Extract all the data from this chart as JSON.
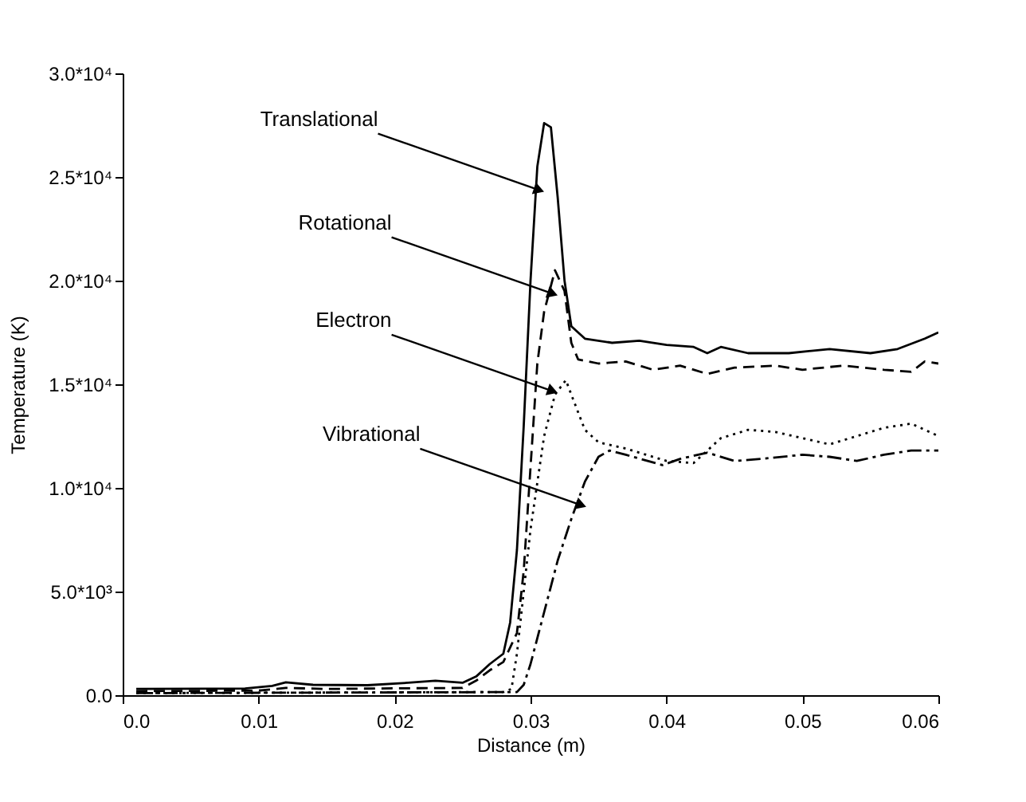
{
  "chart_data": {
    "type": "line",
    "xlabel": "Distance (m)",
    "ylabel": "Temperature (K)",
    "xlim": [
      0,
      0.06
    ],
    "xticks": [
      {
        "value": 0,
        "label": "0.0"
      },
      0.01,
      0.02,
      0.03,
      0.04,
      0.05,
      0.06
    ],
    "ylim": [
      0,
      30000
    ],
    "yticks": [
      {
        "value": 0,
        "label": "0.0"
      },
      {
        "value": 5000,
        "label": "5.0*10³"
      },
      {
        "value": 10000,
        "label": "1.0*10⁴"
      },
      {
        "value": 15000,
        "label": "1.5*10⁴"
      },
      {
        "value": 20000,
        "label": "2.0*10⁴"
      },
      {
        "value": 25000,
        "label": "2.5*10⁴"
      },
      {
        "value": 30000,
        "label": "3.0*10⁴"
      }
    ],
    "grid": false,
    "series": [
      {
        "color": "#000000",
        "line_style": "solid",
        "x": [
          0.001,
          0.009,
          0.011,
          0.012,
          0.014,
          0.018,
          0.021,
          0.023,
          0.025,
          0.026,
          0.027,
          0.028,
          0.0285,
          0.029,
          0.0295,
          0.03,
          0.0305,
          0.031,
          0.0315,
          0.032,
          0.0325,
          0.033,
          0.034,
          0.036,
          0.038,
          0.04,
          0.042,
          0.043,
          0.044,
          0.046,
          0.049,
          0.052,
          0.055,
          0.057,
          0.059,
          0.06
        ],
        "values": [
          300,
          320,
          450,
          620,
          500,
          480,
          600,
          700,
          600,
          900,
          1500,
          2000,
          3500,
          7000,
          13000,
          20000,
          25500,
          27600,
          27400,
          24000,
          20000,
          17800,
          17200,
          17000,
          17100,
          16900,
          16800,
          16500,
          16800,
          16500,
          16500,
          16700,
          16500,
          16700,
          17200,
          17500
        ]
      },
      {
        "color": "#000000",
        "line_style": "dashed",
        "x": [
          0.001,
          0.01,
          0.012,
          0.015,
          0.02,
          0.025,
          0.026,
          0.027,
          0.028,
          0.029,
          0.0295,
          0.03,
          0.0305,
          0.031,
          0.0318,
          0.0325,
          0.033,
          0.0335,
          0.035,
          0.037,
          0.039,
          0.041,
          0.043,
          0.045,
          0.048,
          0.05,
          0.053,
          0.056,
          0.058,
          0.059,
          0.06
        ],
        "values": [
          200,
          220,
          350,
          300,
          330,
          350,
          700,
          1200,
          1600,
          3000,
          6000,
          11000,
          16000,
          18500,
          20500,
          19500,
          17000,
          16200,
          16000,
          16100,
          15700,
          15900,
          15500,
          15800,
          15900,
          15700,
          15900,
          15700,
          15600,
          16100,
          16000
        ]
      },
      {
        "color": "#000000",
        "line_style": "dotted",
        "x": [
          0.001,
          0.028,
          0.0286,
          0.029,
          0.0295,
          0.03,
          0.031,
          0.0318,
          0.0326,
          0.033,
          0.034,
          0.035,
          0.037,
          0.04,
          0.042,
          0.044,
          0.046,
          0.048,
          0.05,
          0.052,
          0.054,
          0.056,
          0.058,
          0.06
        ],
        "values": [
          100,
          150,
          300,
          2000,
          5000,
          8000,
          12500,
          14500,
          15200,
          14500,
          12800,
          12200,
          11900,
          11300,
          11200,
          12400,
          12800,
          12700,
          12400,
          12100,
          12500,
          12900,
          13100,
          12500
        ]
      },
      {
        "color": "#000000",
        "line_style": "dashdot",
        "x": [
          0.001,
          0.029,
          0.0295,
          0.03,
          0.031,
          0.032,
          0.033,
          0.034,
          0.035,
          0.0358,
          0.037,
          0.0397,
          0.041,
          0.043,
          0.045,
          0.047,
          0.05,
          0.052,
          0.054,
          0.056,
          0.058,
          0.06
        ],
        "values": [
          100,
          150,
          500,
          1500,
          4000,
          6500,
          8500,
          10300,
          11500,
          11800,
          11600,
          11100,
          11400,
          11700,
          11300,
          11400,
          11600,
          11500,
          11300,
          11600,
          11800,
          11800
        ]
      }
    ],
    "annotations": [
      {
        "text": "Translational",
        "x": 0.0305,
        "y": 24400
      },
      {
        "text": "Rotational",
        "x": 0.0315,
        "y": 19400
      },
      {
        "text": "Electron",
        "x": 0.0315,
        "y": 14700
      },
      {
        "text": "Vibrational",
        "x": 0.0336,
        "y": 9200
      }
    ]
  }
}
